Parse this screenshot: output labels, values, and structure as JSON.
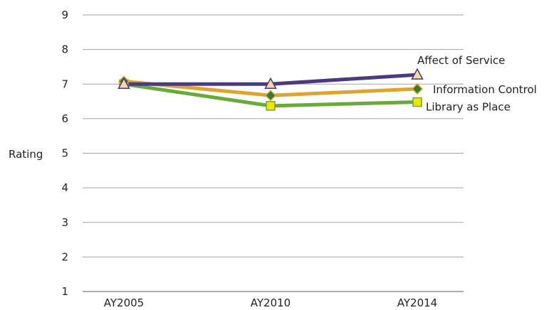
{
  "chart_data": {
    "type": "line",
    "categories": [
      "AY2005",
      "AY2010",
      "AY2014"
    ],
    "ylabel": "Rating",
    "ylim": [
      1,
      9
    ],
    "yticks": [
      "1",
      "2",
      "3",
      "4",
      "5",
      "6",
      "7",
      "8",
      "9"
    ],
    "grid": true,
    "series": [
      {
        "name": "Affect of Service",
        "values": [
          7.0,
          7.0,
          7.27
        ],
        "color": "#4b3a7f",
        "marker": "triangle",
        "marker_fill": "#f5d9a3"
      },
      {
        "name": "Information Control",
        "values": [
          7.08,
          6.67,
          6.86
        ],
        "color": "#e0a42e",
        "marker": "diamond",
        "marker_fill": "#2f7d32"
      },
      {
        "name": "Library as Place",
        "values": [
          7.0,
          6.37,
          6.48
        ],
        "color": "#6aaa3a",
        "marker": "square",
        "marker_fill": "#f2e600"
      }
    ]
  }
}
